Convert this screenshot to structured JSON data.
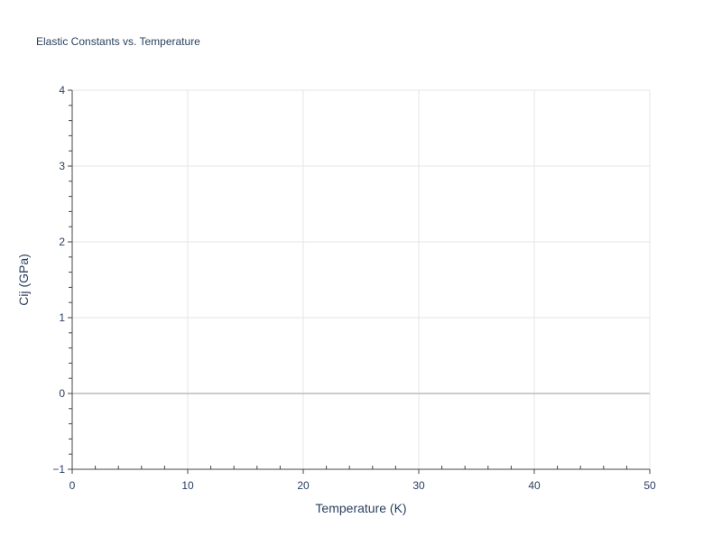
{
  "chart_data": {
    "type": "line",
    "title": "Elastic Constants vs. Temperature",
    "xlabel": "Temperature (K)",
    "ylabel": "Cij (GPa)",
    "xlim": [
      0,
      50
    ],
    "ylim": [
      -1,
      4
    ],
    "xticks": [
      "0",
      "10",
      "20",
      "30",
      "40",
      "50"
    ],
    "yticks": [
      "−1",
      "0",
      "1",
      "2",
      "3",
      "4"
    ],
    "grid": true,
    "series": []
  },
  "colors": {
    "grid": "#e5e5e5",
    "zeroline": "#cccccc",
    "text": "#2a3f5f"
  }
}
